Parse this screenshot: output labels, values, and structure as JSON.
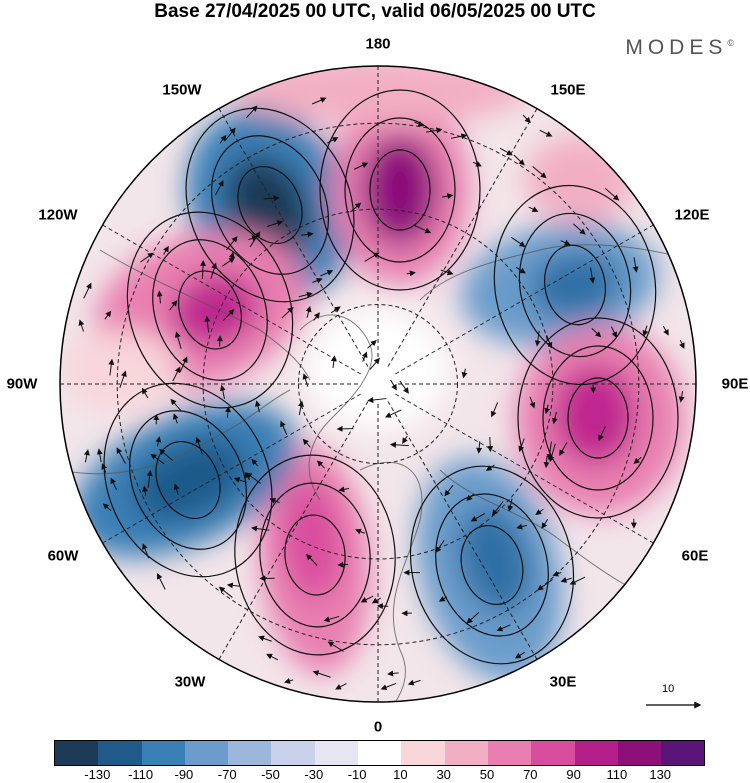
{
  "header": {
    "title": "Base 27/04/2025 00 UTC, valid 06/05/2025 00 UTC",
    "brand": "MODES",
    "brand_mark": "©"
  },
  "map": {
    "projection": "north polar stereographic",
    "longitude_labels": [
      "180",
      "150E",
      "120E",
      "90E",
      "60E",
      "30E",
      "0",
      "30W",
      "60W",
      "90W",
      "120W",
      "150W"
    ],
    "reference_vector_label": "10"
  },
  "colorbar": {
    "ticks": [
      "-130",
      "-110",
      "-90",
      "-70",
      "-50",
      "-30",
      "-10",
      "10",
      "30",
      "50",
      "70",
      "90",
      "110",
      "130"
    ],
    "colors": [
      "#1d3a57",
      "#1f5a8a",
      "#3a7fb5",
      "#6b9ccb",
      "#9cb6dc",
      "#c9d2ea",
      "#e6e6f2",
      "#ffffff",
      "#f8d6da",
      "#f2afc3",
      "#e87fb0",
      "#d94d9f",
      "#b41f8a",
      "#8c0f7a",
      "#5b1478"
    ]
  }
}
